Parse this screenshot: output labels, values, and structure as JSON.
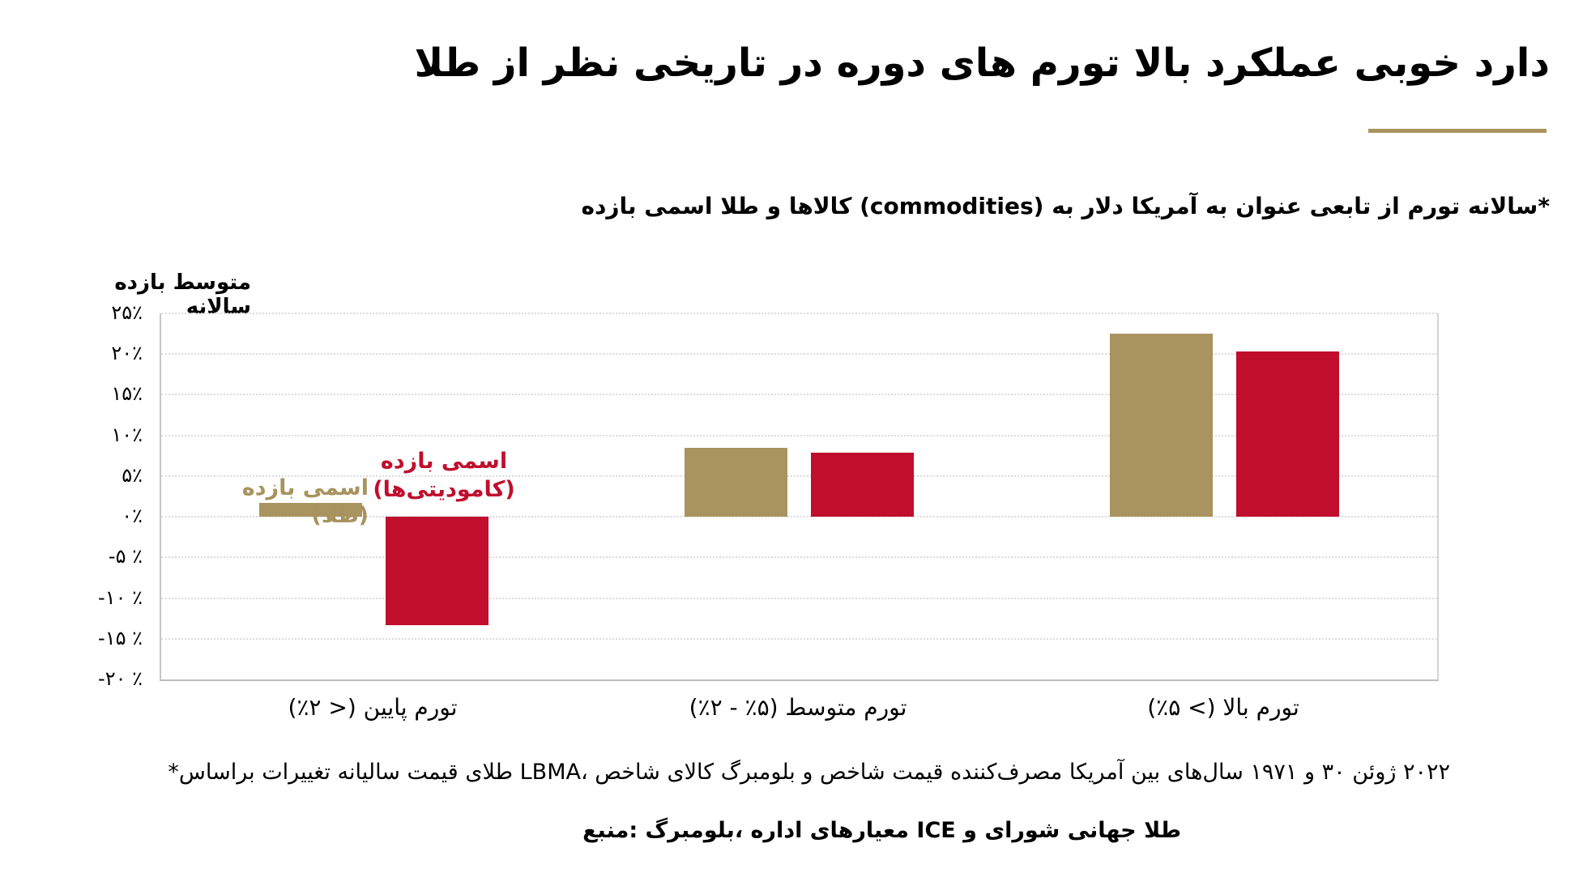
{
  "title": "طلا از نظر تاریخی در دوره های تورم بالا عملکرد خوبی دارد",
  "subtitle": "بازده اسمی طلا و کالاها (commodities) به دلار آمریکا به عنوان تابعی از تورم سالانه*",
  "y_axis_title": "بازده متوسط سالانه",
  "legend": {
    "gold_label": "بازده اسمی (طلا)",
    "commodities_label_line1": "بازده اسمی",
    "commodities_label_line2": "(کامودیتی‌ها)"
  },
  "footnote": "*براساس تغییرات سالیانه قیمت طلای LBMA، شاخص کالای بلومبرگ و شاخص قیمت مصرف‌کننده آمریکا بین سال‌های ۱۹۷۱ و ۳۰ ژوئن ۲۰۲۲",
  "source": "منبع: بلومبرگ، اداره معیارهای ICE و شورای جهانی طلا",
  "colors": {
    "gold": "#A9935F",
    "red": "#C00E2C",
    "grid": "#DBDBDB",
    "axis": "#BDBDBD",
    "title_rule": "#A9935F",
    "text": "#000000"
  },
  "chart_data": {
    "type": "bar",
    "title": "طلا از نظر تاریخی در دوره های تورم بالا عملکرد خوبی دارد",
    "subtitle": "بازده اسمی طلا و کالاها (commodities) به دلار آمریکا به عنوان تابعی از تورم سالانه*",
    "categories": [
      "تورم پایین (< ۲٪)",
      "تورم متوسط (۵٪ - ۲٪)",
      "تورم بالا (> ۵٪)"
    ],
    "series": [
      {
        "name": "بازده اسمی (طلا)",
        "color": "#A9935F",
        "values": [
          1.7,
          8.5,
          22.5
        ]
      },
      {
        "name": "بازده اسمی (کامودیتی‌ها)",
        "color": "#C00E2C",
        "values": [
          -13.3,
          7.9,
          20.3
        ]
      }
    ],
    "xlabel": "",
    "ylabel": "بازده متوسط سالانه",
    "ylim": [
      -20,
      25
    ],
    "ytick_step": 5,
    "yticks": [
      {
        "v": 25,
        "label": "۲۵٪"
      },
      {
        "v": 20,
        "label": "۲۰٪"
      },
      {
        "v": 15,
        "label": "۱۵٪"
      },
      {
        "v": 10,
        "label": "۱۰٪"
      },
      {
        "v": 5,
        "label": "۵٪"
      },
      {
        "v": 0,
        "label": "۰٪"
      },
      {
        "v": -5,
        "label": "-۵ ٪"
      },
      {
        "v": -10,
        "label": "-۱۰ ٪"
      },
      {
        "v": -15,
        "label": "-۱۵ ٪"
      },
      {
        "v": -20,
        "label": "-۲۰ ٪"
      }
    ],
    "grid": true,
    "legend_position": "annotation-near-first-group"
  }
}
